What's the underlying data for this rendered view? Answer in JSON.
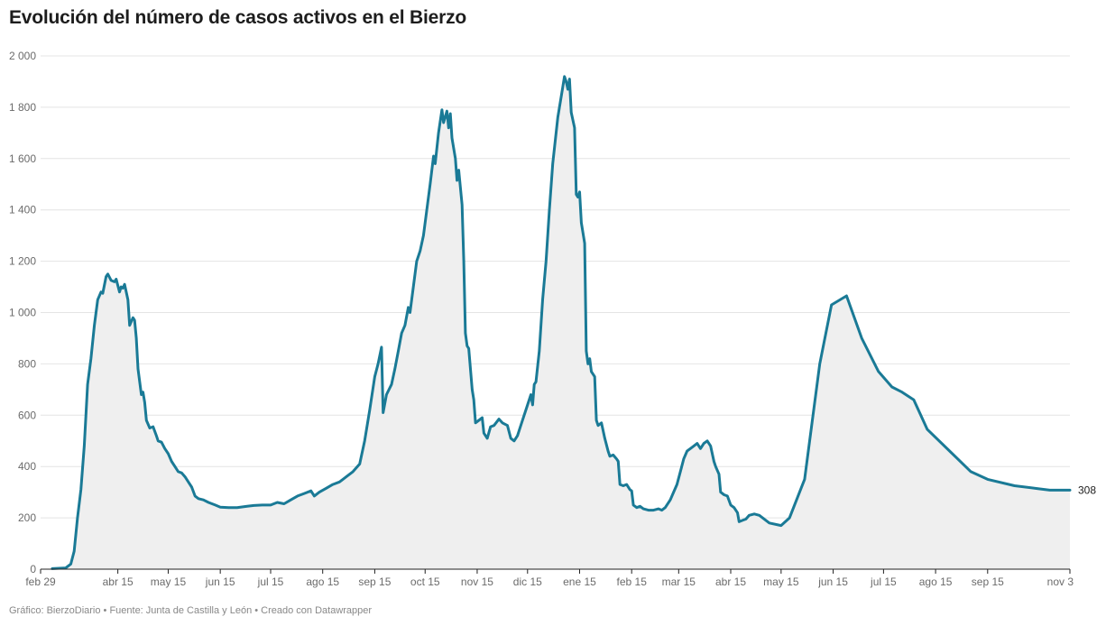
{
  "page": {
    "title": "Evolución del número de casos activos en el Bierzo",
    "footer": "Gráfico: BierzoDiario • Fuente: Junta de Castilla y León • Creado con Datawrapper"
  },
  "colors": {
    "line": "#1a7a96",
    "area": "#efefef",
    "grid": "#e4e4e4",
    "axis": "#222222"
  },
  "chart_data": {
    "type": "area",
    "title": "Evolución del número de casos activos en el Bierzo",
    "xlabel": "",
    "ylabel": "",
    "x_range": [
      "2020-02-29",
      "2021-11-03"
    ],
    "ylim": [
      0,
      2000
    ],
    "yticks": [
      0,
      200,
      400,
      600,
      800,
      1000,
      1200,
      1400,
      1600,
      1800,
      2000
    ],
    "ytick_labels": [
      "0",
      "200",
      "400",
      "600",
      "800",
      "1 000",
      "1 200",
      "1 400",
      "1 600",
      "1 800",
      "2 000"
    ],
    "xticks": [
      {
        "date": "2020-02-29",
        "label": "feb 29"
      },
      {
        "date": "2020-04-15",
        "label": "abr 15"
      },
      {
        "date": "2020-05-15",
        "label": "may 15"
      },
      {
        "date": "2020-06-15",
        "label": "jun 15"
      },
      {
        "date": "2020-07-15",
        "label": "jul 15"
      },
      {
        "date": "2020-08-15",
        "label": "ago 15"
      },
      {
        "date": "2020-09-15",
        "label": "sep 15"
      },
      {
        "date": "2020-10-15",
        "label": "oct 15"
      },
      {
        "date": "2020-11-15",
        "label": "nov 15"
      },
      {
        "date": "2020-12-15",
        "label": "dic 15"
      },
      {
        "date": "2021-01-15",
        "label": "ene 15"
      },
      {
        "date": "2021-02-15",
        "label": "feb 15"
      },
      {
        "date": "2021-03-15",
        "label": "mar 15"
      },
      {
        "date": "2021-04-15",
        "label": "abr 15"
      },
      {
        "date": "2021-05-15",
        "label": "may 15"
      },
      {
        "date": "2021-06-15",
        "label": "jun 15"
      },
      {
        "date": "2021-07-15",
        "label": "jul 15"
      },
      {
        "date": "2021-08-15",
        "label": "ago 15"
      },
      {
        "date": "2021-09-15",
        "label": "sep 15"
      },
      {
        "date": "2021-11-03",
        "label": "nov 3"
      }
    ],
    "grid": true,
    "end_label": "308",
    "series": [
      {
        "points": [
          [
            "2020-03-07",
            2
          ],
          [
            "2020-03-15",
            5
          ],
          [
            "2020-03-18",
            20
          ],
          [
            "2020-03-20",
            70
          ],
          [
            "2020-03-22",
            200
          ],
          [
            "2020-03-24",
            310
          ],
          [
            "2020-03-26",
            480
          ],
          [
            "2020-03-28",
            720
          ],
          [
            "2020-03-30",
            820
          ],
          [
            "2020-04-01",
            950
          ],
          [
            "2020-04-03",
            1050
          ],
          [
            "2020-04-05",
            1080
          ],
          [
            "2020-04-06",
            1075
          ],
          [
            "2020-04-08",
            1140
          ],
          [
            "2020-04-09",
            1150
          ],
          [
            "2020-04-11",
            1125
          ],
          [
            "2020-04-13",
            1120
          ],
          [
            "2020-04-14",
            1130
          ],
          [
            "2020-04-16",
            1080
          ],
          [
            "2020-04-17",
            1100
          ],
          [
            "2020-04-18",
            1095
          ],
          [
            "2020-04-19",
            1110
          ],
          [
            "2020-04-21",
            1050
          ],
          [
            "2020-04-22",
            950
          ],
          [
            "2020-04-24",
            980
          ],
          [
            "2020-04-25",
            970
          ],
          [
            "2020-04-26",
            900
          ],
          [
            "2020-04-27",
            780
          ],
          [
            "2020-04-29",
            680
          ],
          [
            "2020-04-30",
            690
          ],
          [
            "2020-05-01",
            650
          ],
          [
            "2020-05-02",
            580
          ],
          [
            "2020-05-04",
            550
          ],
          [
            "2020-05-06",
            555
          ],
          [
            "2020-05-08",
            520
          ],
          [
            "2020-05-09",
            500
          ],
          [
            "2020-05-11",
            495
          ],
          [
            "2020-05-13",
            470
          ],
          [
            "2020-05-15",
            450
          ],
          [
            "2020-05-17",
            420
          ],
          [
            "2020-05-19",
            400
          ],
          [
            "2020-05-21",
            380
          ],
          [
            "2020-05-23",
            375
          ],
          [
            "2020-05-25",
            360
          ],
          [
            "2020-05-27",
            340
          ],
          [
            "2020-05-29",
            320
          ],
          [
            "2020-05-31",
            285
          ],
          [
            "2020-06-02",
            275
          ],
          [
            "2020-06-05",
            270
          ],
          [
            "2020-06-08",
            260
          ],
          [
            "2020-06-12",
            250
          ],
          [
            "2020-06-15",
            242
          ],
          [
            "2020-06-20",
            240
          ],
          [
            "2020-06-25",
            240
          ],
          [
            "2020-07-01",
            245
          ],
          [
            "2020-07-05",
            248
          ],
          [
            "2020-07-10",
            250
          ],
          [
            "2020-07-15",
            250
          ],
          [
            "2020-07-19",
            260
          ],
          [
            "2020-07-23",
            255
          ],
          [
            "2020-07-27",
            270
          ],
          [
            "2020-07-31",
            285
          ],
          [
            "2020-08-04",
            295
          ],
          [
            "2020-08-08",
            305
          ],
          [
            "2020-08-10",
            285
          ],
          [
            "2020-08-13",
            300
          ],
          [
            "2020-08-17",
            315
          ],
          [
            "2020-08-21",
            330
          ],
          [
            "2020-08-25",
            340
          ],
          [
            "2020-08-29",
            360
          ],
          [
            "2020-09-02",
            380
          ],
          [
            "2020-09-06",
            410
          ],
          [
            "2020-09-09",
            500
          ],
          [
            "2020-09-12",
            620
          ],
          [
            "2020-09-15",
            750
          ],
          [
            "2020-09-17",
            800
          ],
          [
            "2020-09-19",
            865
          ],
          [
            "2020-09-20",
            610
          ],
          [
            "2020-09-22",
            680
          ],
          [
            "2020-09-25",
            720
          ],
          [
            "2020-09-27",
            780
          ],
          [
            "2020-09-29",
            850
          ],
          [
            "2020-10-01",
            920
          ],
          [
            "2020-10-03",
            950
          ],
          [
            "2020-10-05",
            1020
          ],
          [
            "2020-10-06",
            1000
          ],
          [
            "2020-10-08",
            1100
          ],
          [
            "2020-10-10",
            1200
          ],
          [
            "2020-10-12",
            1240
          ],
          [
            "2020-10-14",
            1300
          ],
          [
            "2020-10-16",
            1400
          ],
          [
            "2020-10-18",
            1500
          ],
          [
            "2020-10-20",
            1610
          ],
          [
            "2020-10-21",
            1580
          ],
          [
            "2020-10-23",
            1700
          ],
          [
            "2020-10-25",
            1790
          ],
          [
            "2020-10-26",
            1740
          ],
          [
            "2020-10-28",
            1785
          ],
          [
            "2020-10-29",
            1720
          ],
          [
            "2020-10-30",
            1775
          ],
          [
            "2020-10-31",
            1680
          ],
          [
            "2020-11-02",
            1600
          ],
          [
            "2020-11-03",
            1515
          ],
          [
            "2020-11-04",
            1555
          ],
          [
            "2020-11-06",
            1420
          ],
          [
            "2020-11-07",
            1200
          ],
          [
            "2020-11-08",
            920
          ],
          [
            "2020-11-09",
            870
          ],
          [
            "2020-11-10",
            860
          ],
          [
            "2020-11-12",
            700
          ],
          [
            "2020-11-13",
            660
          ],
          [
            "2020-11-14",
            570
          ],
          [
            "2020-11-16",
            580
          ],
          [
            "2020-11-18",
            590
          ],
          [
            "2020-11-19",
            530
          ],
          [
            "2020-11-21",
            510
          ],
          [
            "2020-11-23",
            555
          ],
          [
            "2020-11-25",
            560
          ],
          [
            "2020-11-28",
            585
          ],
          [
            "2020-11-30",
            570
          ],
          [
            "2020-12-03",
            560
          ],
          [
            "2020-12-05",
            510
          ],
          [
            "2020-12-07",
            500
          ],
          [
            "2020-12-09",
            520
          ],
          [
            "2020-12-11",
            560
          ],
          [
            "2020-12-14",
            620
          ],
          [
            "2020-12-17",
            680
          ],
          [
            "2020-12-18",
            640
          ],
          [
            "2020-12-19",
            720
          ],
          [
            "2020-12-20",
            730
          ],
          [
            "2020-12-22",
            850
          ],
          [
            "2020-12-24",
            1050
          ],
          [
            "2020-12-26",
            1200
          ],
          [
            "2020-12-28",
            1400
          ],
          [
            "2020-12-30",
            1580
          ],
          [
            "2021-01-02",
            1760
          ],
          [
            "2021-01-05",
            1880
          ],
          [
            "2021-01-06",
            1920
          ],
          [
            "2021-01-07",
            1900
          ],
          [
            "2021-01-08",
            1870
          ],
          [
            "2021-01-09",
            1910
          ],
          [
            "2021-01-10",
            1780
          ],
          [
            "2021-01-12",
            1720
          ],
          [
            "2021-01-13",
            1460
          ],
          [
            "2021-01-14",
            1450
          ],
          [
            "2021-01-15",
            1470
          ],
          [
            "2021-01-16",
            1350
          ],
          [
            "2021-01-18",
            1270
          ],
          [
            "2021-01-19",
            850
          ],
          [
            "2021-01-20",
            800
          ],
          [
            "2021-01-21",
            820
          ],
          [
            "2021-01-22",
            770
          ],
          [
            "2021-01-24",
            750
          ],
          [
            "2021-01-25",
            580
          ],
          [
            "2021-01-26",
            560
          ],
          [
            "2021-01-28",
            570
          ],
          [
            "2021-01-30",
            510
          ],
          [
            "2021-02-01",
            460
          ],
          [
            "2021-02-02",
            440
          ],
          [
            "2021-02-04",
            445
          ],
          [
            "2021-02-06",
            430
          ],
          [
            "2021-02-07",
            420
          ],
          [
            "2021-02-08",
            330
          ],
          [
            "2021-02-10",
            325
          ],
          [
            "2021-02-12",
            330
          ],
          [
            "2021-02-14",
            310
          ],
          [
            "2021-02-15",
            305
          ],
          [
            "2021-02-16",
            250
          ],
          [
            "2021-02-18",
            240
          ],
          [
            "2021-02-20",
            245
          ],
          [
            "2021-02-22",
            235
          ],
          [
            "2021-02-25",
            230
          ],
          [
            "2021-02-28",
            230
          ],
          [
            "2021-03-03",
            235
          ],
          [
            "2021-03-05",
            230
          ],
          [
            "2021-03-07",
            240
          ],
          [
            "2021-03-10",
            270
          ],
          [
            "2021-03-12",
            300
          ],
          [
            "2021-03-14",
            330
          ],
          [
            "2021-03-16",
            380
          ],
          [
            "2021-03-18",
            430
          ],
          [
            "2021-03-20",
            460
          ],
          [
            "2021-03-22",
            470
          ],
          [
            "2021-03-24",
            480
          ],
          [
            "2021-03-26",
            490
          ],
          [
            "2021-03-28",
            470
          ],
          [
            "2021-03-30",
            490
          ],
          [
            "2021-04-01",
            500
          ],
          [
            "2021-04-03",
            480
          ],
          [
            "2021-04-05",
            420
          ],
          [
            "2021-04-06",
            400
          ],
          [
            "2021-04-08",
            370
          ],
          [
            "2021-04-09",
            300
          ],
          [
            "2021-04-11",
            290
          ],
          [
            "2021-04-13",
            285
          ],
          [
            "2021-04-15",
            250
          ],
          [
            "2021-04-17",
            240
          ],
          [
            "2021-04-19",
            220
          ],
          [
            "2021-04-20",
            185
          ],
          [
            "2021-04-22",
            190
          ],
          [
            "2021-04-24",
            195
          ],
          [
            "2021-04-26",
            210
          ],
          [
            "2021-04-29",
            215
          ],
          [
            "2021-05-02",
            210
          ],
          [
            "2021-05-08",
            180
          ],
          [
            "2021-05-15",
            170
          ],
          [
            "2021-05-20",
            200
          ],
          [
            "2021-05-29",
            350
          ],
          [
            "2021-06-04",
            650
          ],
          [
            "2021-06-07",
            800
          ],
          [
            "2021-06-14",
            1030
          ],
          [
            "2021-06-23",
            1065
          ],
          [
            "2021-07-02",
            900
          ],
          [
            "2021-07-12",
            770
          ],
          [
            "2021-07-20",
            710
          ],
          [
            "2021-07-26",
            690
          ],
          [
            "2021-08-02",
            660
          ],
          [
            "2021-08-10",
            545
          ],
          [
            "2021-08-25",
            450
          ],
          [
            "2021-09-05",
            380
          ],
          [
            "2021-09-15",
            350
          ],
          [
            "2021-10-01",
            325
          ],
          [
            "2021-10-15",
            314
          ],
          [
            "2021-10-22",
            308
          ],
          [
            "2021-11-03",
            308
          ]
        ]
      }
    ]
  }
}
